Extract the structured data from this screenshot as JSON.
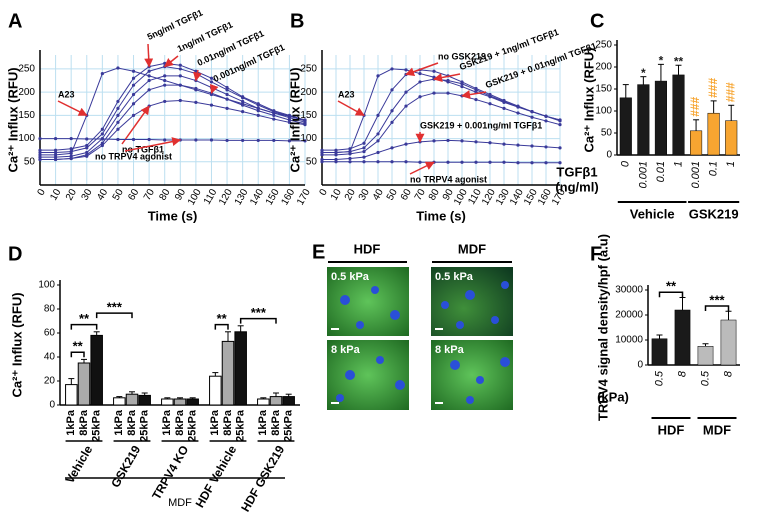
{
  "chart_data": [
    {
      "panel": "A",
      "type": "line",
      "ylabel": "Ca²⁺ Influx (RFU)",
      "xlabel": "Time (s)",
      "x": [
        0,
        10,
        20,
        30,
        40,
        50,
        60,
        70,
        80,
        90,
        100,
        110,
        120,
        130,
        140,
        150,
        160,
        170
      ],
      "xlim": [
        0,
        170
      ],
      "xticks": [
        0,
        10,
        20,
        30,
        40,
        50,
        60,
        70,
        80,
        90,
        100,
        110,
        120,
        130,
        140,
        150,
        160,
        170
      ],
      "ylim": [
        0,
        280
      ],
      "yticks": [
        50,
        100,
        150,
        200,
        250
      ],
      "grid": true,
      "color": "#3a3a9a",
      "series": [
        {
          "name": "A23",
          "values": [
            65,
            65,
            68,
            150,
            240,
            252,
            245,
            235,
            225,
            215,
            205,
            195,
            185,
            175,
            165,
            155,
            148,
            140
          ]
        },
        {
          "name": "5ng/ml TGFβ1",
          "values": [
            75,
            75,
            78,
            85,
            120,
            180,
            230,
            255,
            262,
            258,
            245,
            230,
            210,
            190,
            175,
            160,
            150,
            140
          ]
        },
        {
          "name": "1ng/ml TGFβ1",
          "values": [
            70,
            70,
            72,
            80,
            110,
            165,
            215,
            245,
            255,
            250,
            240,
            222,
            205,
            188,
            172,
            158,
            148,
            138
          ]
        },
        {
          "name": "0.01ng/ml TGFβ1",
          "values": [
            60,
            60,
            62,
            70,
            100,
            150,
            195,
            225,
            235,
            235,
            225,
            210,
            195,
            180,
            165,
            155,
            145,
            135
          ]
        },
        {
          "name": "0.001ng/ml TGFβ1",
          "values": [
            55,
            55,
            57,
            65,
            90,
            135,
            175,
            205,
            215,
            215,
            208,
            198,
            185,
            172,
            160,
            150,
            140,
            132
          ]
        },
        {
          "name": "no TGFβ1",
          "values": [
            55,
            55,
            57,
            62,
            85,
            120,
            150,
            170,
            180,
            182,
            178,
            172,
            165,
            158,
            150,
            142,
            135,
            130
          ]
        },
        {
          "name": "no TRPV4 agonist",
          "values": [
            100,
            100,
            100,
            99,
            99,
            98,
            98,
            98,
            97,
            97,
            97,
            97,
            96,
            96,
            96,
            96,
            95,
            95
          ]
        }
      ]
    },
    {
      "panel": "B",
      "type": "line",
      "ylabel": "Ca²⁺ Influx (RFU)",
      "xlabel": "Time (s)",
      "x": [
        0,
        10,
        20,
        30,
        40,
        50,
        60,
        70,
        80,
        90,
        100,
        110,
        120,
        130,
        140,
        150,
        160,
        170
      ],
      "xlim": [
        0,
        170
      ],
      "xticks": [
        0,
        10,
        20,
        30,
        40,
        50,
        60,
        70,
        80,
        90,
        100,
        110,
        120,
        130,
        140,
        150,
        160,
        170
      ],
      "ylim": [
        0,
        280
      ],
      "yticks": [
        50,
        100,
        150,
        200,
        250
      ],
      "grid": true,
      "color": "#3a3a9a",
      "series": [
        {
          "name": "A23",
          "values": [
            70,
            70,
            72,
            150,
            235,
            250,
            248,
            240,
            232,
            222,
            212,
            200,
            190,
            178,
            168,
            158,
            148,
            140
          ]
        },
        {
          "name": "no GSK219",
          "values": [
            75,
            75,
            78,
            90,
            150,
            205,
            238,
            248,
            245,
            235,
            222,
            208,
            195,
            182,
            170,
            158,
            148,
            140
          ]
        },
        {
          "name": "GSK219 + 1ng/ml TGFβ1",
          "values": [
            70,
            70,
            72,
            80,
            110,
            160,
            200,
            222,
            228,
            225,
            218,
            205,
            192,
            180,
            168,
            158,
            148,
            138
          ]
        },
        {
          "name": "GSK219 + 0.01ng/ml TGFβ1",
          "values": [
            65,
            65,
            67,
            72,
            95,
            135,
            170,
            190,
            198,
            198,
            192,
            184,
            175,
            165,
            155,
            146,
            138,
            130
          ]
        },
        {
          "name": "GSK219 + 0.001ng/ml TGFβ1",
          "values": [
            55,
            55,
            57,
            60,
            70,
            80,
            88,
            93,
            95,
            96,
            95,
            93,
            91,
            88,
            86,
            84,
            82,
            80
          ]
        },
        {
          "name": "no TRPV4 agonist",
          "values": [
            50,
            50,
            50,
            50,
            50,
            50,
            50,
            49,
            49,
            49,
            49,
            49,
            49,
            49,
            48,
            48,
            48,
            48
          ]
        }
      ]
    },
    {
      "panel": "C",
      "type": "bar",
      "ylabel": "Ca²⁺ Influx (RFU)",
      "x_label": "TGFβ1",
      "x_label_unit": "(ng/ml)",
      "categories": [
        "0",
        "0.001",
        "0.01",
        "1",
        "0.001",
        "0.1",
        "1"
      ],
      "values": [
        130,
        160,
        168,
        182,
        55,
        95,
        78
      ],
      "errors": [
        30,
        18,
        38,
        22,
        25,
        28,
        35
      ],
      "colors": [
        "#1a1a1a",
        "#1a1a1a",
        "#1a1a1a",
        "#1a1a1a",
        "#f7a531",
        "#f7a531",
        "#f7a531"
      ],
      "value_annotations": [
        null,
        "*",
        "*",
        "**",
        "###",
        "###",
        "###"
      ],
      "ylim": [
        0,
        250
      ],
      "yticks": [
        0,
        50,
        100,
        150,
        200,
        250
      ],
      "groups": [
        {
          "name": "Vehicle",
          "from": 0,
          "to": 3
        },
        {
          "name": "GSK219",
          "from": 4,
          "to": 6
        }
      ]
    },
    {
      "panel": "D",
      "type": "grouped_bar",
      "ylabel": "Ca²⁺ Influx (RFU)",
      "categories": [
        "Vehicle",
        "GSK219",
        "TRPV4 KO",
        "HDF Vehicle",
        "HDF GSK219"
      ],
      "series": [
        {
          "name": "1kPa",
          "color": "#ffffff",
          "values": [
            17,
            6,
            5,
            24,
            5
          ],
          "errors": [
            5,
            1,
            1,
            3,
            1
          ]
        },
        {
          "name": "8kPa",
          "color": "#aaaaaa",
          "values": [
            35,
            9,
            5,
            53,
            7
          ],
          "errors": [
            3,
            2,
            1,
            8,
            3
          ]
        },
        {
          "name": "25kPa",
          "color": "#111111",
          "values": [
            58,
            8,
            5,
            61,
            7
          ],
          "errors": [
            3,
            2,
            1,
            5,
            2
          ]
        }
      ],
      "ylim": [
        0,
        100
      ],
      "yticks": [
        0,
        20,
        40,
        60,
        80,
        100
      ],
      "brackets": [
        {
          "label": "**",
          "from": [
            0,
            0
          ],
          "to": [
            0,
            1
          ]
        },
        {
          "label": "**",
          "from": [
            0,
            0
          ],
          "to": [
            0,
            2
          ]
        },
        {
          "label": "***",
          "from": [
            0,
            2
          ],
          "to": [
            1,
            1
          ]
        },
        {
          "label": "**",
          "from": [
            3,
            0
          ],
          "to": [
            3,
            1
          ]
        },
        {
          "label": "***",
          "from": [
            3,
            2
          ],
          "to": [
            4,
            1
          ]
        }
      ],
      "group_label": "MDF"
    },
    {
      "panel": "F",
      "type": "bar",
      "ylabel": "TRPV4 signal density/hpf (a.u)",
      "x_label": "(kPa)",
      "categories": [
        "0.5",
        "8",
        "0.5",
        "8"
      ],
      "values": [
        10500,
        22000,
        7500,
        18000
      ],
      "errors": [
        1500,
        5000,
        1000,
        3500
      ],
      "colors": [
        "#1a1a1a",
        "#1a1a1a",
        "#bbbbbb",
        "#bbbbbb"
      ],
      "ylim": [
        0,
        30000
      ],
      "yticks": [
        0,
        10000,
        20000,
        30000
      ],
      "brackets": [
        {
          "label": "**",
          "from": 0,
          "to": 1
        },
        {
          "label": "***",
          "from": 2,
          "to": 3
        }
      ],
      "groups": [
        {
          "name": "HDF",
          "from": 0,
          "to": 1
        },
        {
          "name": "MDF",
          "from": 2,
          "to": 3
        }
      ]
    }
  ],
  "image_panel": {
    "panel": "E",
    "columns": [
      "HDF",
      "MDF"
    ],
    "tiles": [
      {
        "label": "0.5 kPa"
      },
      {
        "label": "0.5 kPa"
      },
      {
        "label": "8 kPa"
      },
      {
        "label": "8 kPa"
      }
    ]
  }
}
